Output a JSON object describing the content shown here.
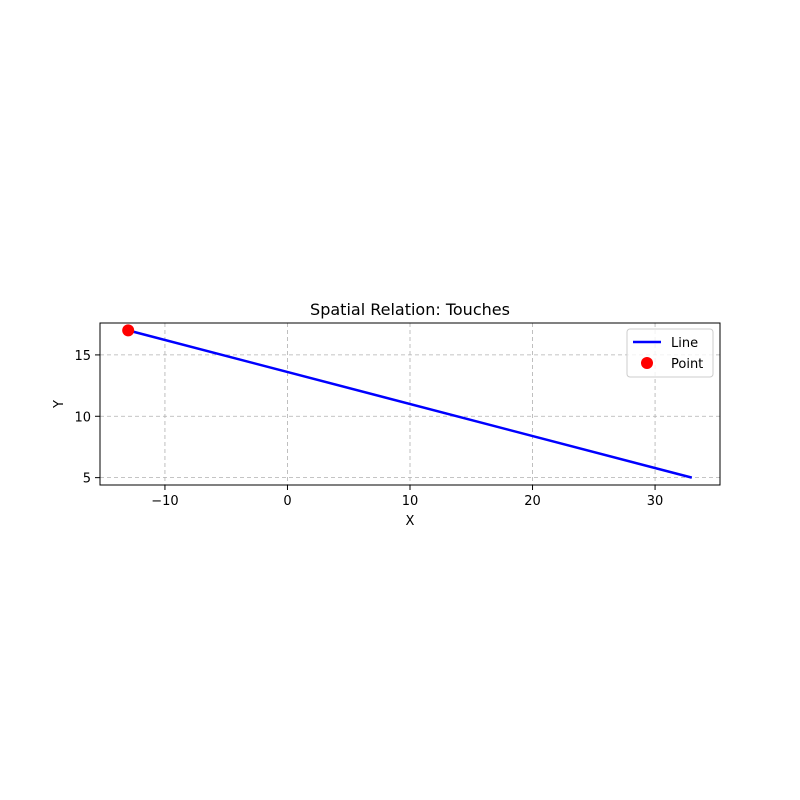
{
  "chart_data": {
    "type": "line",
    "title": "Spatial Relation: Touches",
    "xlabel": "X",
    "ylabel": "Y",
    "xlim": [
      -15.3,
      35.3
    ],
    "ylim": [
      4.4,
      17.6
    ],
    "xticks": [
      -10,
      0,
      10,
      20,
      30
    ],
    "xtick_labels": [
      "−10",
      "0",
      "10",
      "20",
      "30"
    ],
    "yticks": [
      5,
      10,
      15
    ],
    "ytick_labels": [
      "5",
      "10",
      "15"
    ],
    "grid": true,
    "legend_position": "top-right",
    "series": [
      {
        "name": "Line",
        "kind": "line",
        "color": "#0000ff",
        "x": [
          -13,
          33
        ],
        "y": [
          17,
          5
        ]
      },
      {
        "name": "Point",
        "kind": "point",
        "color": "#ff0000",
        "x": [
          -13
        ],
        "y": [
          17
        ]
      }
    ]
  }
}
